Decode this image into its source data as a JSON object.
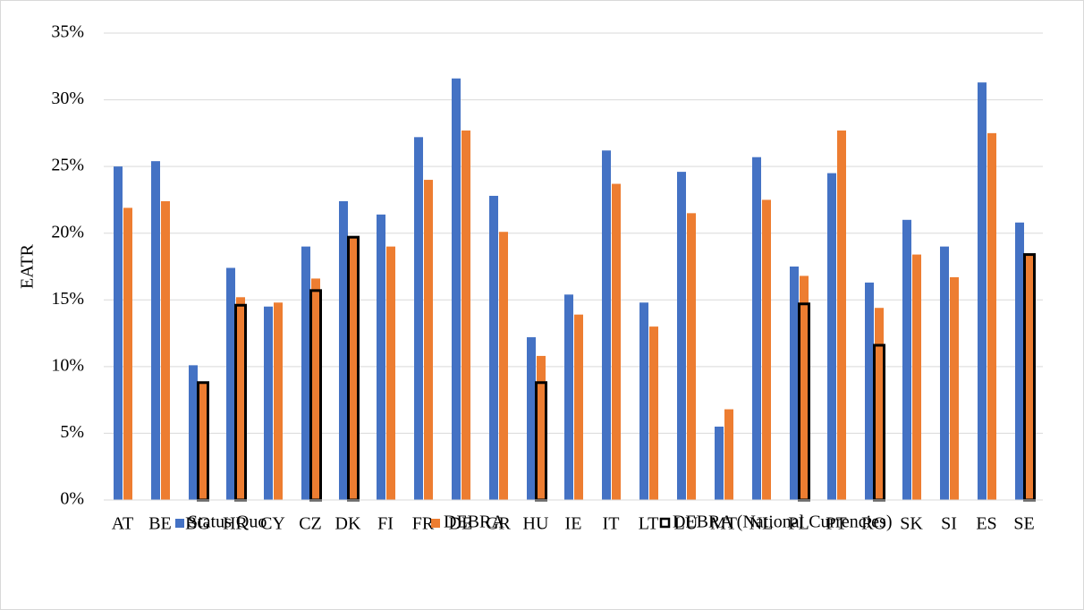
{
  "chart_data": {
    "type": "bar",
    "y_label": "EATR",
    "categories": [
      "AT",
      "BE",
      "BG",
      "HR",
      "CY",
      "CZ",
      "DK",
      "FI",
      "FR",
      "DE",
      "GR",
      "HU",
      "IE",
      "IT",
      "LT",
      "LU",
      "MT",
      "NL",
      "PL",
      "PT",
      "RO",
      "SK",
      "SI",
      "ES",
      "SE"
    ],
    "series": [
      {
        "name": "Status Quo",
        "color": "#4472c4",
        "values": [
          25.0,
          25.4,
          10.1,
          17.4,
          14.5,
          19.0,
          22.4,
          21.4,
          27.2,
          31.6,
          22.8,
          12.2,
          15.4,
          26.2,
          14.8,
          24.6,
          5.5,
          25.7,
          17.5,
          24.5,
          16.3,
          21.0,
          19.0,
          31.3,
          20.8
        ]
      },
      {
        "name": "DEBRA",
        "color": "#ed7d31",
        "values": [
          21.9,
          22.4,
          8.8,
          15.2,
          14.8,
          16.6,
          19.7,
          19.0,
          24.0,
          27.7,
          20.1,
          10.8,
          13.9,
          23.7,
          13.0,
          21.5,
          6.8,
          22.5,
          16.8,
          27.7,
          14.4,
          18.4,
          16.7,
          27.5,
          18.4
        ]
      },
      {
        "name": "DEBRA (National Currencies)",
        "color": "#000000",
        "values": [
          null,
          null,
          8.8,
          14.6,
          null,
          15.7,
          19.7,
          null,
          null,
          null,
          null,
          8.8,
          null,
          null,
          null,
          null,
          null,
          null,
          14.7,
          null,
          11.6,
          null,
          null,
          null,
          18.4
        ]
      }
    ],
    "ylim": [
      0,
      35
    ],
    "yticks": [
      {
        "value": 0,
        "label": "0%"
      },
      {
        "value": 5,
        "label": "5%"
      },
      {
        "value": 10,
        "label": "10%"
      },
      {
        "value": 15,
        "label": "15%"
      },
      {
        "value": 20,
        "label": "20%"
      },
      {
        "value": 25,
        "label": "25%"
      },
      {
        "value": 30,
        "label": "30%"
      },
      {
        "value": 35,
        "label": "35%"
      }
    ],
    "grid": true,
    "legend": "bottom"
  }
}
